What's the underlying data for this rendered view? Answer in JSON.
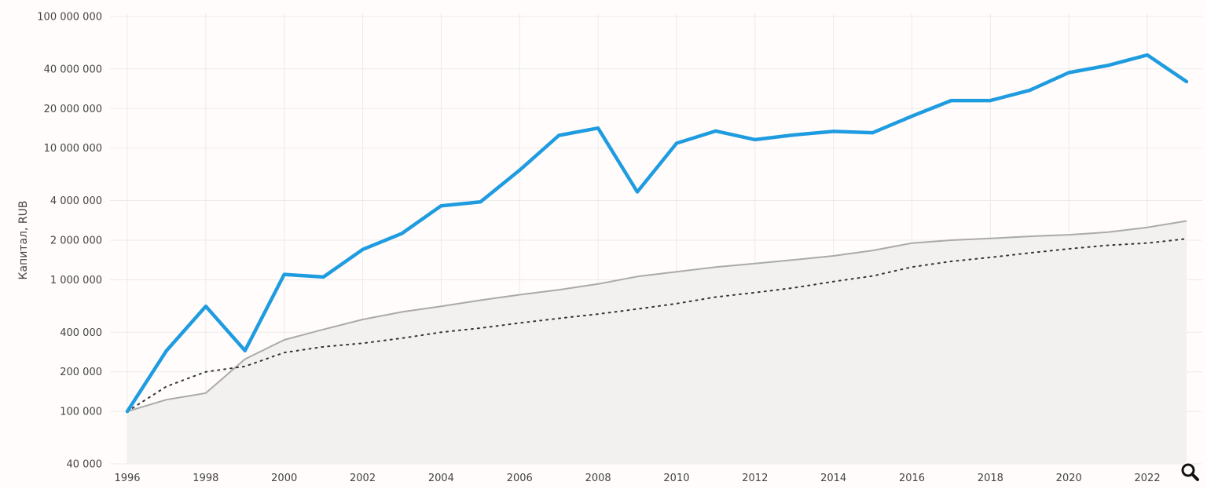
{
  "chart_data": {
    "type": "line",
    "title": "",
    "xlabel": "",
    "ylabel": "Капитал, RUB",
    "y_scale": "log",
    "ylim": [
      40000,
      100000000
    ],
    "xlim": [
      1996,
      2023
    ],
    "grid": true,
    "x_ticks": [
      1996,
      1998,
      2000,
      2002,
      2004,
      2006,
      2008,
      2010,
      2012,
      2014,
      2016,
      2018,
      2020,
      2022
    ],
    "x_tick_labels": [
      "1996",
      "1998",
      "2000",
      "2002",
      "2004",
      "2006",
      "2008",
      "2010",
      "2012",
      "2014",
      "2016",
      "2018",
      "2020",
      "2022"
    ],
    "y_ticks": [
      40000,
      100000,
      200000,
      400000,
      1000000,
      2000000,
      4000000,
      10000000,
      20000000,
      40000000,
      100000000
    ],
    "y_tick_labels": [
      "40 000",
      "100 000",
      "200 000",
      "400 000",
      "1 000 000",
      "2 000 000",
      "4 000 000",
      "10 000 000",
      "20 000 000",
      "40 000 000",
      "100 000 000"
    ],
    "x": [
      1996,
      1997,
      1998,
      1999,
      2000,
      2001,
      2002,
      2003,
      2004,
      2005,
      2006,
      2007,
      2008,
      2009,
      2010,
      2011,
      2012,
      2013,
      2014,
      2015,
      2016,
      2017,
      2018,
      2019,
      2020,
      2021,
      2022,
      2023
    ],
    "series": [
      {
        "style": "solid",
        "color": "#1f9ce0",
        "values": [
          100000,
          290000,
          630000,
          290000,
          1100000,
          1050000,
          1700000,
          2250000,
          3650000,
          3900000,
          6800000,
          12500000,
          14200000,
          4650000,
          10900000,
          13500000,
          11600000,
          12600000,
          13400000,
          13100000,
          17500000,
          23000000,
          23000000,
          27500000,
          37500000,
          42500000,
          51000000,
          32000000
        ]
      },
      {
        "style": "solid-fill",
        "color": "#aaaaaa",
        "fill": "#f2f1f0",
        "values": [
          100000,
          123000,
          138000,
          250000,
          350000,
          420000,
          500000,
          570000,
          630000,
          700000,
          770000,
          840000,
          930000,
          1060000,
          1150000,
          1250000,
          1330000,
          1420000,
          1520000,
          1670000,
          1900000,
          2000000,
          2060000,
          2140000,
          2200000,
          2300000,
          2500000,
          2800000
        ]
      },
      {
        "style": "dotted",
        "color": "#333333",
        "values": [
          100000,
          155000,
          200000,
          220000,
          280000,
          310000,
          330000,
          360000,
          400000,
          430000,
          470000,
          510000,
          550000,
          600000,
          660000,
          740000,
          800000,
          870000,
          970000,
          1070000,
          1250000,
          1380000,
          1480000,
          1600000,
          1720000,
          1830000,
          1900000,
          2050000
        ]
      }
    ]
  },
  "toolbar": {
    "zoom_icon": "magnifier-icon"
  }
}
